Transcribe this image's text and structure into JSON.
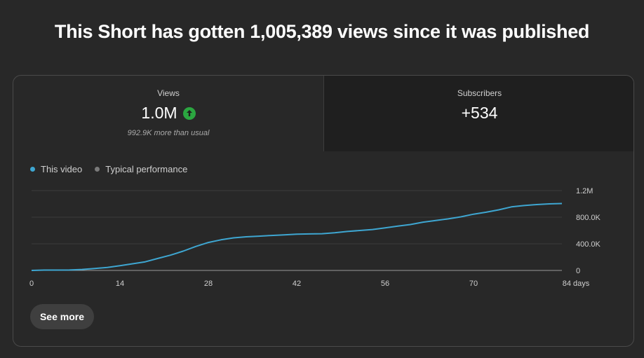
{
  "headline": "This Short has gotten 1,005,389 views since it was published",
  "views_tab": {
    "label": "Views",
    "value": "1.0M",
    "trend_icon": "arrow-up-circle-icon",
    "note": "992.9K more than usual"
  },
  "subscribers_tab": {
    "label": "Subscribers",
    "value": "+534"
  },
  "colors": {
    "this_video": "#3ea6d1",
    "typical": "#7a7a7a",
    "trend_up": "#2ba640"
  },
  "see_more_label": "See more",
  "chart_data": {
    "type": "line",
    "series": [
      {
        "name": "This video",
        "x": [
          0,
          2,
          4,
          6,
          8,
          10,
          12,
          14,
          16,
          18,
          20,
          22,
          24,
          26,
          28,
          30,
          32,
          34,
          36,
          38,
          40,
          42,
          44,
          46,
          48,
          50,
          52,
          54,
          56,
          58,
          60,
          62,
          64,
          66,
          68,
          70,
          72,
          74,
          76,
          78,
          80,
          82,
          84
        ],
        "y": [
          0,
          5000,
          5000,
          6000,
          15000,
          28000,
          45000,
          70000,
          100000,
          130000,
          180000,
          230000,
          290000,
          360000,
          420000,
          460000,
          490000,
          505000,
          515000,
          525000,
          535000,
          545000,
          548000,
          552000,
          565000,
          585000,
          600000,
          615000,
          640000,
          665000,
          690000,
          725000,
          750000,
          775000,
          805000,
          845000,
          875000,
          910000,
          955000,
          975000,
          990000,
          1000000,
          1005389
        ]
      }
    ],
    "legend": [
      "This video",
      "Typical performance"
    ],
    "legend_position": "top-left",
    "x_ticks": [
      "0",
      "14",
      "28",
      "42",
      "56",
      "70",
      "84 days"
    ],
    "x_tick_values": [
      0,
      14,
      28,
      42,
      56,
      70,
      84
    ],
    "y_ticks": [
      "0",
      "400.0K",
      "800.0K",
      "1.2M"
    ],
    "y_tick_values": [
      0,
      400000,
      800000,
      1200000
    ],
    "xlim": [
      0,
      84
    ],
    "ylim": [
      0,
      1200000
    ],
    "grid": true
  }
}
